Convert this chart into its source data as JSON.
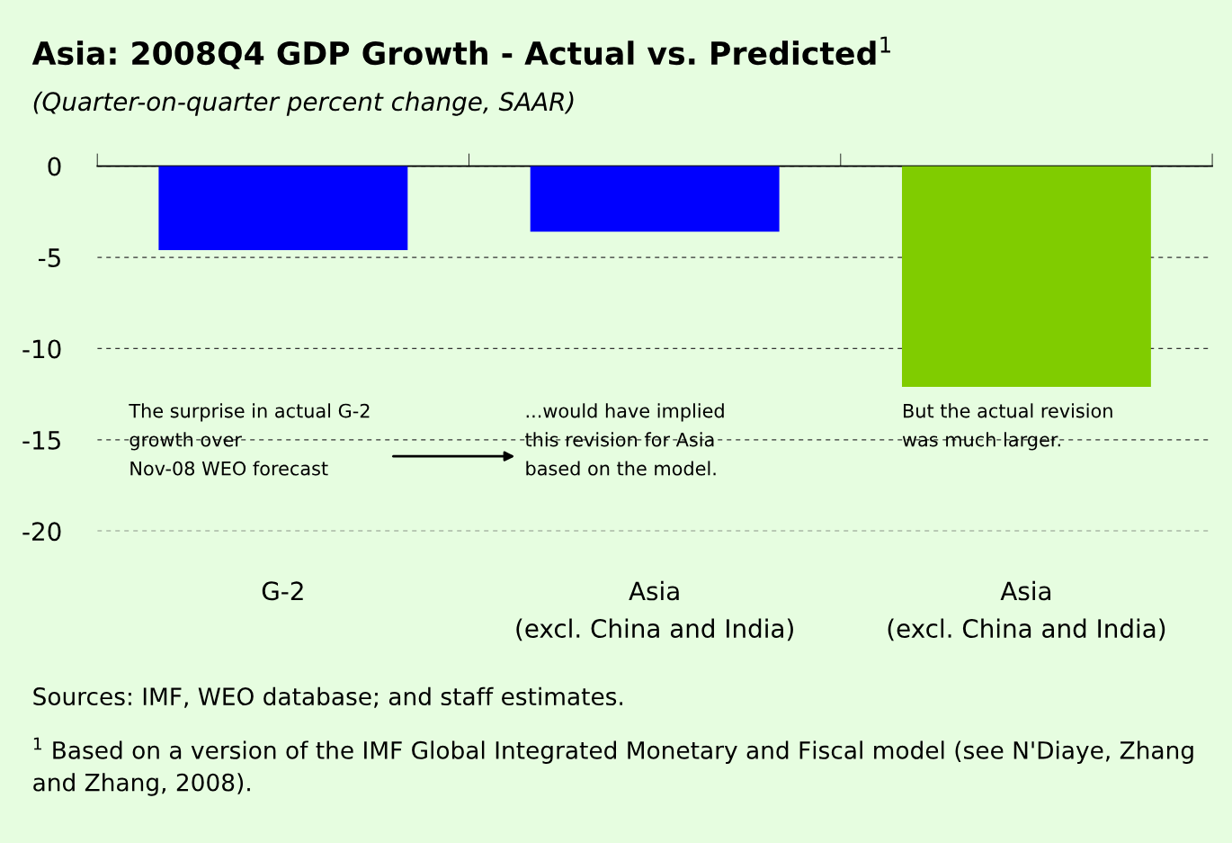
{
  "chart_data": {
    "type": "bar",
    "title": "Asia: 2008Q4 GDP Growth - Actual vs. Predicted$^{1}$",
    "subtitle": "(Quarter-on-quarter percent change, SAAR)",
    "categories": [
      "G-2",
      "Asia\n(excl. China and India)",
      "Asia\n(excl. China and India)"
    ],
    "values": [
      -4.6,
      -3.6,
      -12.1
    ],
    "colors": [
      "#0000ff",
      "#0000ff",
      "#80cc00"
    ],
    "ylim": [
      -20,
      0
    ],
    "yticks": [
      -20,
      -15,
      -10,
      -5,
      0
    ],
    "grid": "y",
    "annotations": [
      "The surprise in actual G-2\ngrowth over\nNov-08 WEO forecast",
      "...would have implied\nthis revision for Asia\nbased on the model.",
      "But the actual revision\nwas much larger.",
      "Sources: IMF, WEO database; and staff estimates.",
      "$^{1}$ Based on a version of the IMF Global Integrated Monetary and Fiscal model (see N'Diaye, Zhang and Zhang, 2008)."
    ]
  }
}
